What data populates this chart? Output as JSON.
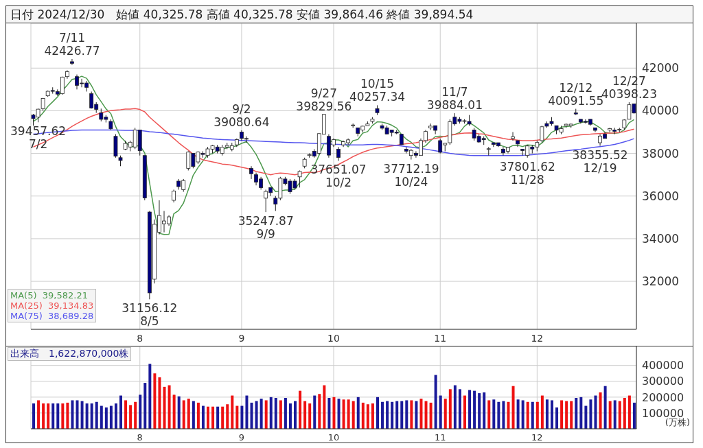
{
  "chart_data": [
    {
      "type": "candlestick",
      "title": "日付 2024/12/30　始値 40,325.78 高値 40,325.78 安値 39,864.46 終値 39,894.54",
      "categories": [
        null,
        null,
        null,
        null,
        null,
        null,
        null,
        null,
        null,
        null,
        null,
        null,
        null,
        null,
        null,
        null,
        null,
        null,
        null,
        null,
        null,
        null,
        "8",
        null,
        null,
        null,
        null,
        null,
        null,
        null,
        null,
        null,
        null,
        null,
        null,
        null,
        null,
        null,
        null,
        null,
        null,
        null,
        null,
        "9",
        null,
        null,
        null,
        null,
        null,
        null,
        null,
        null,
        null,
        null,
        null,
        null,
        null,
        null,
        null,
        null,
        null,
        null,
        "10",
        null,
        null,
        null,
        null,
        null,
        null,
        null,
        null,
        null,
        null,
        null,
        null,
        null,
        null,
        null,
        null,
        null,
        null,
        null,
        null,
        null,
        "11",
        null,
        null,
        null,
        null,
        null,
        null,
        null,
        null,
        null,
        null,
        null,
        null,
        null,
        null,
        null,
        null,
        null,
        null,
        null,
        "12",
        null,
        null,
        null,
        null,
        null,
        null,
        null,
        null,
        null,
        null,
        null,
        null,
        null,
        null,
        null,
        null,
        null,
        null,
        null,
        null
      ],
      "ohlc": [
        [
          39800,
          39850,
          39300,
          39631
        ],
        [
          39700,
          40100,
          39457.62,
          40074
        ],
        [
          40100,
          40600,
          40000,
          40580
        ],
        [
          40700,
          40950,
          40650,
          40913
        ],
        [
          40950,
          41100,
          40800,
          40912
        ],
        [
          40900,
          41000,
          40700,
          40780
        ],
        [
          40800,
          41600,
          40750,
          41580
        ],
        [
          41600,
          41900,
          41500,
          41831
        ],
        [
          42300,
          42426.77,
          42150,
          42224
        ],
        [
          41600,
          41700,
          41000,
          41190
        ],
        [
          41300,
          41500,
          41100,
          41275
        ],
        [
          41300,
          41400,
          40900,
          41097
        ],
        [
          40800,
          40900,
          40100,
          40126
        ],
        [
          40300,
          40400,
          39900,
          40063
        ],
        [
          39900,
          40100,
          39500,
          39599
        ],
        [
          39700,
          39800,
          39450,
          39594
        ],
        [
          39500,
          39600,
          39100,
          39154
        ],
        [
          38800,
          38900,
          37800,
          37869
        ],
        [
          37800,
          37900,
          37400,
          37667
        ],
        [
          38200,
          38600,
          38150,
          38468
        ],
        [
          38300,
          38600,
          38100,
          38525
        ],
        [
          38300,
          39200,
          38200,
          39101
        ],
        [
          39100,
          39100,
          37900,
          38126
        ],
        [
          37900,
          37900,
          35800,
          35909
        ],
        [
          35250,
          35300,
          31156.12,
          31458
        ],
        [
          32100,
          34900,
          31900,
          34675
        ],
        [
          34300,
          35800,
          34200,
          35089
        ],
        [
          34700,
          35300,
          34300,
          34831
        ],
        [
          34700,
          35100,
          34600,
          35025
        ],
        [
          35800,
          36300,
          35700,
          36232
        ],
        [
          36700,
          36800,
          36300,
          36442
        ],
        [
          36300,
          36800,
          36200,
          36726
        ],
        [
          37300,
          38100,
          37200,
          38062
        ],
        [
          38000,
          38000,
          37300,
          37388
        ],
        [
          37600,
          38100,
          37500,
          38063
        ],
        [
          38000,
          38100,
          37800,
          37951
        ],
        [
          37900,
          38300,
          37800,
          38211
        ],
        [
          38200,
          38400,
          38000,
          38364
        ],
        [
          38300,
          38400,
          38000,
          38110
        ],
        [
          38000,
          38400,
          37900,
          38288
        ],
        [
          38300,
          38500,
          38200,
          38371
        ],
        [
          38200,
          38500,
          38100,
          38362
        ],
        [
          38400,
          38700,
          38300,
          38648
        ],
        [
          39000,
          39080.64,
          38600,
          38700
        ],
        [
          38700,
          38800,
          38500,
          38686
        ],
        [
          37300,
          37400,
          36800,
          37047
        ],
        [
          37000,
          37100,
          36500,
          36657
        ],
        [
          36800,
          36900,
          36300,
          36391
        ],
        [
          35900,
          36300,
          35247.87,
          36215
        ],
        [
          36400,
          36400,
          36000,
          36159
        ],
        [
          35900,
          36000,
          35300,
          35620
        ],
        [
          35900,
          36900,
          35800,
          36833
        ],
        [
          36800,
          36900,
          36500,
          36581
        ],
        [
          36700,
          36800,
          36100,
          36203
        ],
        [
          36700,
          36800,
          36300,
          36380
        ],
        [
          36900,
          37200,
          36400,
          37155
        ],
        [
          37400,
          37800,
          37300,
          37723
        ],
        [
          37900,
          38000,
          37800,
          37940
        ],
        [
          38100,
          38200,
          37800,
          37870
        ],
        [
          38000,
          38950,
          37950,
          38926
        ],
        [
          38900,
          39829.56,
          38900,
          39829
        ],
        [
          38800,
          38900,
          37800,
          37919
        ],
        [
          38400,
          38700,
          38300,
          38651
        ],
        [
          38200,
          38300,
          37651.07,
          37808
        ],
        [
          38400,
          38600,
          38300,
          38552
        ],
        [
          38500,
          38700,
          38400,
          38635
        ],
        [
          39300,
          39400,
          39200,
          39332
        ],
        [
          39200,
          39200,
          38800,
          38937
        ],
        [
          39100,
          39300,
          39000,
          39277
        ],
        [
          39300,
          39500,
          39300,
          39380
        ],
        [
          39500,
          39700,
          39400,
          39605
        ],
        [
          40100,
          40257.34,
          39800,
          39910
        ],
        [
          39300,
          39400,
          39100,
          39180
        ],
        [
          39200,
          39300,
          38900,
          38911
        ],
        [
          39100,
          39100,
          38800,
          38981
        ],
        [
          39000,
          39100,
          38900,
          38954
        ],
        [
          38900,
          38900,
          38400,
          38411
        ],
        [
          38200,
          38300,
          38000,
          38104
        ],
        [
          37900,
          38200,
          37712.19,
          38143
        ],
        [
          38000,
          38100,
          37800,
          37913
        ],
        [
          37900,
          38700,
          37900,
          38605
        ],
        [
          38600,
          39100,
          38500,
          39027
        ],
        [
          39200,
          39400,
          39100,
          39277
        ],
        [
          39300,
          39300,
          38900,
          39081
        ],
        [
          38600,
          38700,
          38000,
          38053
        ],
        [
          38400,
          38500,
          38100,
          38474
        ],
        [
          38500,
          39600,
          38400,
          39480
        ],
        [
          39700,
          39884.01,
          39300,
          39381
        ],
        [
          39600,
          39700,
          39400,
          39500
        ],
        [
          39500,
          39600,
          39400,
          39533
        ],
        [
          39500,
          39800,
          39300,
          39376
        ],
        [
          39100,
          39200,
          38600,
          38721
        ],
        [
          38800,
          38900,
          38500,
          38535
        ],
        [
          38700,
          38800,
          38400,
          38642
        ],
        [
          38200,
          38300,
          37900,
          38220
        ],
        [
          38500,
          38500,
          38300,
          38414
        ],
        [
          38500,
          38500,
          38300,
          38352
        ],
        [
          38200,
          38300,
          37900,
          38026
        ],
        [
          38100,
          38300,
          38000,
          38283
        ],
        [
          38700,
          39000,
          38600,
          38780
        ],
        [
          38600,
          38600,
          38300,
          38442
        ],
        [
          38200,
          38200,
          37900,
          38134
        ],
        [
          37900,
          38400,
          37801.62,
          38349
        ],
        [
          38300,
          38400,
          38000,
          38208
        ],
        [
          38300,
          38600,
          38100,
          38513
        ],
        [
          38600,
          39300,
          38500,
          39248
        ],
        [
          39400,
          39500,
          39200,
          39276
        ],
        [
          39500,
          39700,
          39300,
          39395
        ],
        [
          39300,
          39300,
          38900,
          39091
        ],
        [
          39000,
          39300,
          38900,
          39160
        ],
        [
          39300,
          39400,
          39200,
          39367
        ],
        [
          39300,
          39400,
          39200,
          39372
        ],
        [
          39900,
          40091.55,
          39800,
          39849
        ],
        [
          39600,
          39600,
          39400,
          39470
        ],
        [
          39500,
          39600,
          39400,
          39457
        ],
        [
          39600,
          39600,
          39300,
          39364
        ],
        [
          39200,
          39200,
          39000,
          39081
        ],
        [
          38500,
          38900,
          38355.52,
          38813
        ],
        [
          38900,
          39000,
          38700,
          38701
        ],
        [
          39100,
          39200,
          39000,
          39161
        ],
        [
          39100,
          39200,
          38900,
          39036
        ],
        [
          39100,
          39200,
          39000,
          39130
        ],
        [
          39200,
          39600,
          39100,
          39568
        ],
        [
          39600,
          40398.23,
          39600,
          40281
        ],
        [
          40325.78,
          40325.78,
          39864.46,
          39894.54
        ]
      ],
      "colors": [
        "#000080",
        "#ffffff",
        "#ffffff",
        "#ffffff",
        "#000080",
        "#000080",
        "#ffffff",
        "#ffffff",
        "#000080",
        "#000080",
        "#000080",
        "#000080",
        "#000080",
        "#000080",
        "#000080",
        "#000080",
        "#000080",
        "#000080",
        "#000080",
        "#ffffff",
        "#ffffff",
        "#ffffff",
        "#000080",
        "#000080",
        "#000080",
        "#ffffff",
        "#ffffff",
        "#ffffff",
        "#ffffff",
        "#ffffff",
        "#000080",
        "#ffffff",
        "#ffffff",
        "#000080",
        "#ffffff",
        "#000080",
        "#ffffff",
        "#ffffff",
        "#000080",
        "#ffffff",
        "#ffffff",
        "#ffffff",
        "#ffffff",
        "#000080",
        "#000080",
        "#000080",
        "#000080",
        "#000080",
        "#ffffff",
        "#000080",
        "#000080",
        "#ffffff",
        "#000080",
        "#000080",
        "#000080",
        "#ffffff",
        "#ffffff",
        "#ffffff",
        "#000080",
        "#ffffff",
        "#ffffff",
        "#000080",
        "#ffffff",
        "#000080",
        "#ffffff",
        "#ffffff",
        "#ffffff",
        "#000080",
        "#ffffff",
        "#ffffff",
        "#ffffff",
        "#000080",
        "#000080",
        "#000080",
        "#000080",
        "#000080",
        "#000080",
        "#000080",
        "#ffffff",
        "#000080",
        "#ffffff",
        "#ffffff",
        "#ffffff",
        "#000080",
        "#000080",
        "#ffffff",
        "#ffffff",
        "#000080",
        "#000080",
        "#ffffff",
        "#000080",
        "#000080",
        "#000080",
        "#000080",
        "#ffffff",
        "#000080",
        "#000080",
        "#000080",
        "#ffffff",
        "#ffffff",
        "#000080",
        "#000080",
        "#ffffff",
        "#000080",
        "#ffffff",
        "#ffffff",
        "#000080",
        "#000080",
        "#000080",
        "#ffffff",
        "#ffffff",
        "#ffffff",
        "#000080",
        "#000080",
        "#000080",
        "#000080",
        "#000080",
        "#ffffff",
        "#000080",
        "#ffffff",
        "#000080",
        "#ffffff",
        "#ffffff",
        "#ffffff",
        "#000080"
      ],
      "series": [
        {
          "type": "line",
          "name": "MA(5)  39,582.21",
          "color": "#4e9a4e",
          "values": [
            39500,
            39650,
            39900,
            40200,
            40420,
            40650,
            40950,
            41200,
            41470,
            41520,
            41620,
            41520,
            41180,
            40750,
            40430,
            40090,
            39870,
            39260,
            38780,
            38550,
            38300,
            38330,
            38370,
            38020,
            36620,
            35250,
            34250,
            34200,
            34210,
            35170,
            35320,
            35670,
            36300,
            36970,
            37340,
            37640,
            37940,
            37990,
            38140,
            38190,
            38270,
            38300,
            38360,
            38470,
            38550,
            38290,
            37950,
            37500,
            37000,
            36490,
            36210,
            36240,
            36280,
            36280,
            36320,
            36630,
            36770,
            37080,
            37410,
            37920,
            38460,
            38500,
            38640,
            38630,
            38540,
            38310,
            38600,
            38650,
            38950,
            39020,
            39310,
            39480,
            39470,
            39410,
            39320,
            39190,
            38890,
            38670,
            38520,
            38310,
            38260,
            38360,
            38590,
            38790,
            38810,
            38780,
            38870,
            38890,
            38980,
            39270,
            39450,
            39300,
            39130,
            38960,
            38630,
            38510,
            38430,
            38330,
            38260,
            38370,
            38380,
            38320,
            38400,
            38380,
            38330,
            38490,
            38720,
            38990,
            39100,
            39230,
            39260,
            39280,
            39370,
            39440,
            39500,
            39480,
            39340,
            39200,
            38990,
            38950,
            38940,
            38970,
            39100,
            39440,
            39582.21
          ]
        },
        {
          "type": "line",
          "name": "MA(25)  39,134.83",
          "color": "#ee5555",
          "values": [
            38300,
            38400,
            38500,
            38620,
            38740,
            38850,
            38980,
            39120,
            39270,
            39400,
            39520,
            39640,
            39740,
            39820,
            39900,
            39960,
            40010,
            40030,
            40050,
            40080,
            40080,
            40100,
            40060,
            39950,
            39700,
            39500,
            39300,
            39100,
            38900,
            38700,
            38500,
            38320,
            38150,
            37960,
            37800,
            37700,
            37650,
            37600,
            37550,
            37500,
            37480,
            37450,
            37400,
            37350,
            37300,
            37250,
            37150,
            37100,
            37050,
            37000,
            37050,
            37080,
            37060,
            37030,
            37000,
            37050,
            37100,
            37120,
            37100,
            37150,
            37250,
            37300,
            37380,
            37480,
            37600,
            37720,
            37850,
            37950,
            38050,
            38130,
            38200,
            38250,
            38280,
            38320,
            38350,
            38380,
            38420,
            38450,
            38470,
            38500,
            38550,
            38600,
            38650,
            38700,
            38750,
            38800,
            38850,
            38890,
            38930,
            38950,
            38960,
            38950,
            38920,
            38900,
            38850,
            38800,
            38750,
            38700,
            38660,
            38650,
            38620,
            38600,
            38600,
            38600,
            38620,
            38650,
            38670,
            38680,
            38700,
            38720,
            38760,
            38800,
            38840,
            38870,
            38890,
            38900,
            38920,
            38930,
            38940,
            38950,
            38960,
            38980,
            39020,
            39080,
            39134.83
          ]
        },
        {
          "type": "line",
          "name": "MA(75)  38,689.28",
          "color": "#5555ee",
          "values": [
            38900,
            38920,
            38950,
            38980,
            39000,
            39020,
            39040,
            39060,
            39080,
            39090,
            39100,
            39100,
            39100,
            39100,
            39100,
            39100,
            39100,
            39100,
            39090,
            39080,
            39080,
            39080,
            39070,
            39050,
            39020,
            39000,
            38980,
            38950,
            38920,
            38900,
            38870,
            38840,
            38810,
            38780,
            38750,
            38720,
            38700,
            38680,
            38660,
            38650,
            38640,
            38630,
            38620,
            38610,
            38600,
            38590,
            38580,
            38570,
            38560,
            38550,
            38540,
            38530,
            38520,
            38510,
            38500,
            38500,
            38490,
            38480,
            38470,
            38460,
            38450,
            38440,
            38430,
            38420,
            38410,
            38400,
            38400,
            38400,
            38400,
            38410,
            38420,
            38420,
            38410,
            38400,
            38390,
            38370,
            38350,
            38320,
            38290,
            38260,
            38230,
            38200,
            38160,
            38120,
            38080,
            38040,
            38000,
            37970,
            37950,
            37930,
            37910,
            37900,
            37900,
            37900,
            37900,
            37900,
            37900,
            37900,
            37900,
            37900,
            37900,
            37910,
            37920,
            37940,
            37960,
            37980,
            38000,
            38030,
            38060,
            38090,
            38120,
            38150,
            38180,
            38200,
            38230,
            38260,
            38290,
            38320,
            38350,
            38380,
            38420,
            38480,
            38540,
            38610,
            38689.28
          ]
        }
      ],
      "annotations": [
        {
          "text": "7/11\n42426.77",
          "y": 42426.77
        },
        {
          "text": "39457.62\n7/2",
          "y": 39457.62
        },
        {
          "text": "31156.12\n8/5",
          "y": 31156.12
        },
        {
          "text": "9/2\n39080.64",
          "y": 39080.64
        },
        {
          "text": "35247.87\n9/9",
          "y": 35247.87
        },
        {
          "text": "9/27\n39829.56",
          "y": 39829.56
        },
        {
          "text": "37651.07\n10/2",
          "y": 37651.07
        },
        {
          "text": "10/15\n40257.34",
          "y": 40257.34
        },
        {
          "text": "37712.19\n10/24",
          "y": 37712.19
        },
        {
          "text": "11/7\n39884.01",
          "y": 39884.01
        },
        {
          "text": "37801.62\n11/28",
          "y": 37801.62
        },
        {
          "text": "12/12\n40091.55",
          "y": 40091.55
        },
        {
          "text": "38355.52\n12/19",
          "y": 38355.52
        },
        {
          "text": "12/27\n40398.23",
          "y": 40398.23
        }
      ],
      "ylim": [
        29750,
        44100
      ],
      "yticks": [
        32000,
        34000,
        36000,
        38000,
        40000,
        42000
      ],
      "grid": true,
      "legend": "bottom left",
      "marker": "none",
      "line_style": "solid"
    },
    {
      "type": "bar",
      "title": "出来高　1,622,870,000株",
      "ylabel": "(万株)",
      "categories": [
        null,
        null,
        null,
        null,
        null,
        null,
        null,
        null,
        null,
        null,
        null,
        null,
        null,
        null,
        null,
        null,
        null,
        null,
        null,
        null,
        null,
        null,
        "8",
        null,
        null,
        null,
        null,
        null,
        null,
        null,
        null,
        null,
        null,
        null,
        null,
        null,
        null,
        null,
        null,
        null,
        null,
        null,
        null,
        "9",
        null,
        null,
        null,
        null,
        null,
        null,
        null,
        null,
        null,
        null,
        null,
        null,
        null,
        null,
        null,
        null,
        null,
        null,
        "10",
        null,
        null,
        null,
        null,
        null,
        null,
        null,
        null,
        null,
        null,
        null,
        null,
        null,
        null,
        null,
        null,
        null,
        null,
        null,
        null,
        null,
        "11",
        null,
        null,
        null,
        null,
        null,
        null,
        null,
        null,
        null,
        null,
        null,
        null,
        null,
        null,
        null,
        null,
        null,
        null,
        null,
        "12",
        null,
        null,
        null,
        null,
        null,
        null,
        null,
        null,
        null,
        null,
        null,
        null,
        null,
        null,
        null,
        null,
        null,
        null,
        null,
        null
      ],
      "values": [
        160000,
        180000,
        160000,
        160000,
        160000,
        160000,
        160000,
        165000,
        180000,
        180000,
        175000,
        160000,
        160000,
        170000,
        145000,
        135000,
        145000,
        160000,
        210000,
        180000,
        150000,
        170000,
        215000,
        290000,
        410000,
        350000,
        325000,
        265000,
        275000,
        215000,
        205000,
        180000,
        190000,
        175000,
        165000,
        145000,
        140000,
        140000,
        140000,
        140000,
        155000,
        210000,
        145000,
        145000,
        210000,
        165000,
        175000,
        190000,
        180000,
        200000,
        195000,
        180000,
        195000,
        160000,
        175000,
        240000,
        175000,
        160000,
        210000,
        220000,
        275000,
        195000,
        200000,
        190000,
        185000,
        185000,
        175000,
        200000,
        165000,
        155000,
        160000,
        200000,
        170000,
        175000,
        170000,
        175000,
        175000,
        180000,
        180000,
        175000,
        190000,
        175000,
        165000,
        340000,
        210000,
        190000,
        250000,
        275000,
        250000,
        210000,
        245000,
        240000,
        225000,
        230000,
        180000,
        185000,
        170000,
        175000,
        170000,
        270000,
        185000,
        180000,
        170000,
        170000,
        170000,
        210000,
        185000,
        180000,
        135000,
        180000,
        175000,
        175000,
        195000,
        200000,
        145000,
        185000,
        210000,
        230000,
        270000,
        175000,
        180000,
        175000,
        195000,
        210000,
        165000
      ],
      "colors": [
        "#1a1a9a",
        "#ee1111",
        "#ee1111",
        "#ee1111",
        "#1a1a9a",
        "#1a1a9a",
        "#ee1111",
        "#ee1111",
        "#1a1a9a",
        "#1a1a9a",
        "#1a1a9a",
        "#1a1a9a",
        "#1a1a9a",
        "#1a1a9a",
        "#1a1a9a",
        "#1a1a9a",
        "#1a1a9a",
        "#1a1a9a",
        "#1a1a9a",
        "#ee1111",
        "#ee1111",
        "#ee1111",
        "#1a1a9a",
        "#1a1a9a",
        "#1a1a9a",
        "#ee1111",
        "#ee1111",
        "#ee1111",
        "#ee1111",
        "#ee1111",
        "#1a1a9a",
        "#ee1111",
        "#ee1111",
        "#1a1a9a",
        "#ee1111",
        "#1a1a9a",
        "#ee1111",
        "#ee1111",
        "#1a1a9a",
        "#ee1111",
        "#ee1111",
        "#ee1111",
        "#ee1111",
        "#1a1a9a",
        "#1a1a9a",
        "#1a1a9a",
        "#1a1a9a",
        "#1a1a9a",
        "#ee1111",
        "#1a1a9a",
        "#1a1a9a",
        "#ee1111",
        "#1a1a9a",
        "#1a1a9a",
        "#1a1a9a",
        "#ee1111",
        "#ee1111",
        "#ee1111",
        "#1a1a9a",
        "#ee1111",
        "#ee1111",
        "#1a1a9a",
        "#ee1111",
        "#1a1a9a",
        "#ee1111",
        "#ee1111",
        "#ee1111",
        "#1a1a9a",
        "#ee1111",
        "#ee1111",
        "#ee1111",
        "#1a1a9a",
        "#1a1a9a",
        "#1a1a9a",
        "#1a1a9a",
        "#1a1a9a",
        "#1a1a9a",
        "#1a1a9a",
        "#ee1111",
        "#1a1a9a",
        "#ee1111",
        "#ee1111",
        "#ee1111",
        "#1a1a9a",
        "#1a1a9a",
        "#ee1111",
        "#ee1111",
        "#1a1a9a",
        "#1a1a9a",
        "#ee1111",
        "#1a1a9a",
        "#1a1a9a",
        "#1a1a9a",
        "#1a1a9a",
        "#ee1111",
        "#1a1a9a",
        "#1a1a9a",
        "#1a1a9a",
        "#ee1111",
        "#ee1111",
        "#1a1a9a",
        "#1a1a9a",
        "#ee1111",
        "#1a1a9a",
        "#ee1111",
        "#ee1111",
        "#1a1a9a",
        "#1a1a9a",
        "#1a1a9a",
        "#ee1111",
        "#ee1111",
        "#ee1111",
        "#1a1a9a",
        "#1a1a9a",
        "#1a1a9a",
        "#1a1a9a",
        "#1a1a9a",
        "#ee1111",
        "#1a1a9a",
        "#ee1111",
        "#1a1a9a",
        "#ee1111",
        "#ee1111",
        "#ee1111",
        "#1a1a9a"
      ],
      "ylim": [
        0,
        520000
      ],
      "yticks": [
        100000,
        200000,
        300000,
        400000
      ],
      "grid": true
    }
  ]
}
